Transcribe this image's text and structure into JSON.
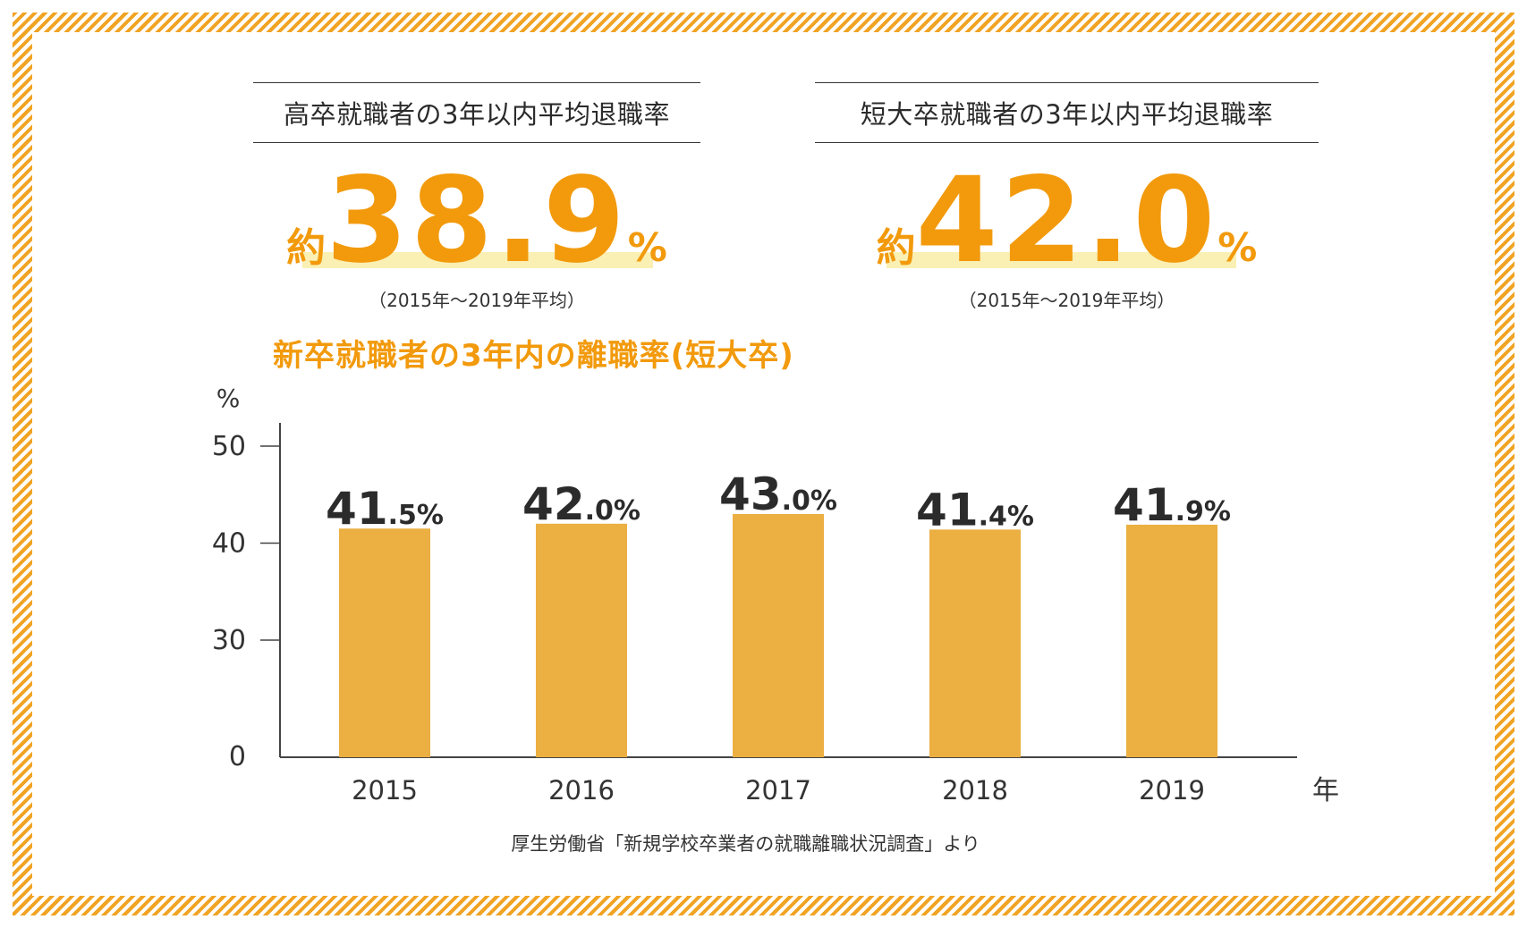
{
  "stats": [
    {
      "title": "高卒就職者の3年以内平均退職率",
      "prefix": "約",
      "value": "38.9",
      "unit": "%",
      "period": "（2015年～2019年平均）"
    },
    {
      "title": "短大卒就職者の3年以内平均退職率",
      "prefix": "約",
      "value": "42.0",
      "unit": "%",
      "period": "（2015年～2019年平均）"
    }
  ],
  "source": "厚生労働省「新規学校卒業者の就職離職状況調査」より",
  "colors": {
    "accent": "#f29a0c",
    "bar": "#ebaf42",
    "highlight": "#faf0b4",
    "frame": "#f1a323"
  },
  "chart_data": {
    "type": "bar",
    "title": "新卒就職者の3年内の離職率(短大卒)",
    "categories": [
      "2015",
      "2016",
      "2017",
      "2018",
      "2019"
    ],
    "values": [
      41.5,
      42.0,
      43.0,
      41.4,
      41.9
    ],
    "value_labels": [
      {
        "int": "41",
        "dec": ".5%"
      },
      {
        "int": "42",
        "dec": ".0%"
      },
      {
        "int": "43",
        "dec": ".0%"
      },
      {
        "int": "41",
        "dec": ".4%"
      },
      {
        "int": "41",
        "dec": ".9%"
      }
    ],
    "yticks": [
      "0",
      "30",
      "40",
      "50"
    ],
    "ylabel": "%",
    "xlabel": "年",
    "ylim": [
      0,
      50
    ],
    "grid": false,
    "axis_break": "0-30"
  }
}
